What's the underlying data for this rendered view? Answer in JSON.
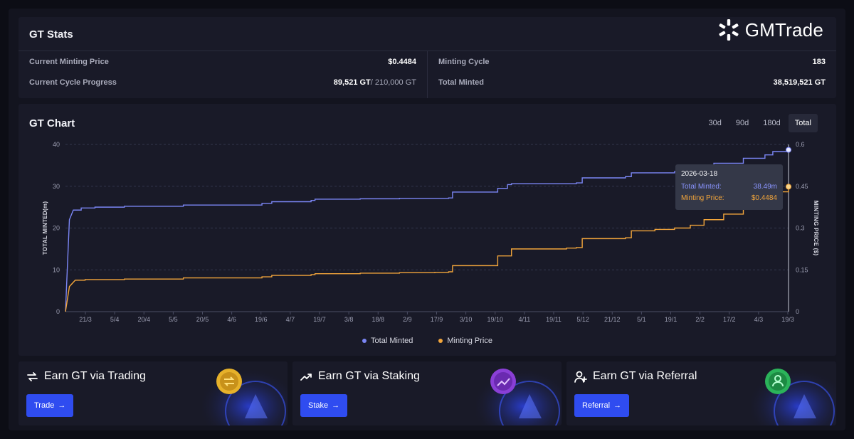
{
  "brand": {
    "name": "GMTrade"
  },
  "stats": {
    "title": "GT Stats",
    "current_minting_price_label": "Current Minting Price",
    "current_minting_price_value": "$0.4484",
    "cycle_progress_label": "Current Cycle Progress",
    "cycle_progress_minted": "89,521 GT",
    "cycle_progress_total": "/ 210,000 GT",
    "minting_cycle_label": "Minting Cycle",
    "minting_cycle_value": "183",
    "total_minted_label": "Total Minted",
    "total_minted_value": "38,519,521 GT"
  },
  "chart": {
    "title": "GT Chart",
    "tabs": [
      {
        "label": "30d"
      },
      {
        "label": "90d"
      },
      {
        "label": "180d"
      },
      {
        "label": "Total",
        "active": true
      }
    ],
    "tooltip": {
      "date": "2026-03-18",
      "total_minted_label": "Total Minted:",
      "total_minted_value": "38.49m",
      "minting_price_label": "Minting Price:",
      "minting_price_value": "$0.4484"
    },
    "legend": {
      "total_minted": "Total Minted",
      "minting_price": "Minting Price"
    }
  },
  "chart_data": {
    "type": "line",
    "title": "GT Chart",
    "ylabel": "TOTAL MINTED(m)",
    "y2label": "MINTING PRICE ($)",
    "ylim": [
      0,
      40
    ],
    "y2lim": [
      0,
      0.6
    ],
    "yticks": [
      0,
      10,
      20,
      30,
      40
    ],
    "y2ticks": [
      0,
      0.15,
      0.3,
      0.45,
      0.6
    ],
    "y2tick_labels": [
      "0",
      "0.15",
      "0.3",
      "0.45",
      "0.6"
    ],
    "grid": true,
    "x_tick_labels": [
      "21/3",
      "5/4",
      "20/4",
      "5/5",
      "20/5",
      "4/6",
      "19/6",
      "4/7",
      "19/7",
      "3/8",
      "18/8",
      "2/9",
      "17/9",
      "3/10",
      "19/10",
      "4/11",
      "19/11",
      "5/12",
      "21/12",
      "5/1",
      "19/1",
      "2/2",
      "17/2",
      "4/3",
      "19/3"
    ],
    "x_range": [
      0,
      368
    ],
    "series": [
      {
        "name": "Total Minted",
        "color": "#7b86f5",
        "axis": "left",
        "x": [
          0,
          2,
          4,
          8,
          15,
          30,
          60,
          100,
          105,
          125,
          127,
          150,
          170,
          188,
          195,
          197,
          220,
          225,
          227,
          260,
          263,
          285,
          288,
          310,
          312,
          330,
          345,
          356,
          360,
          368
        ],
        "y": [
          0,
          22,
          24.3,
          24.8,
          25,
          25.2,
          25.5,
          25.9,
          26.3,
          26.6,
          26.9,
          27,
          27.1,
          27.1,
          27.2,
          28.6,
          29.5,
          30.4,
          30.6,
          30.8,
          32.0,
          32.3,
          33.2,
          33.5,
          34.0,
          35.5,
          36.7,
          37.5,
          38.3,
          38.7
        ]
      },
      {
        "name": "Minting Price",
        "color": "#f2a53b",
        "axis": "right",
        "x": [
          0,
          2,
          5,
          10,
          30,
          60,
          100,
          105,
          125,
          127,
          150,
          170,
          188,
          195,
          197,
          220,
          225,
          227,
          255,
          260,
          263,
          285,
          288,
          300,
          310,
          318,
          325,
          335,
          345,
          356,
          360,
          368
        ],
        "y": [
          0,
          0.09,
          0.113,
          0.115,
          0.117,
          0.121,
          0.125,
          0.13,
          0.133,
          0.136,
          0.138,
          0.14,
          0.141,
          0.143,
          0.165,
          0.2,
          0.2,
          0.225,
          0.228,
          0.23,
          0.262,
          0.265,
          0.29,
          0.295,
          0.3,
          0.31,
          0.33,
          0.35,
          0.38,
          0.405,
          0.43,
          0.4484
        ]
      }
    ]
  },
  "cards": [
    {
      "title": "Earn GT via Trading",
      "button": "Trade",
      "icon": "swap-icon",
      "coin_color": "#e6b12a"
    },
    {
      "title": "Earn GT via Staking",
      "button": "Stake",
      "icon": "trend-up-icon",
      "coin_color": "#8a3fd6"
    },
    {
      "title": "Earn GT via Referral",
      "button": "Referral",
      "icon": "user-plus-icon",
      "coin_color": "#2bb35a"
    }
  ]
}
